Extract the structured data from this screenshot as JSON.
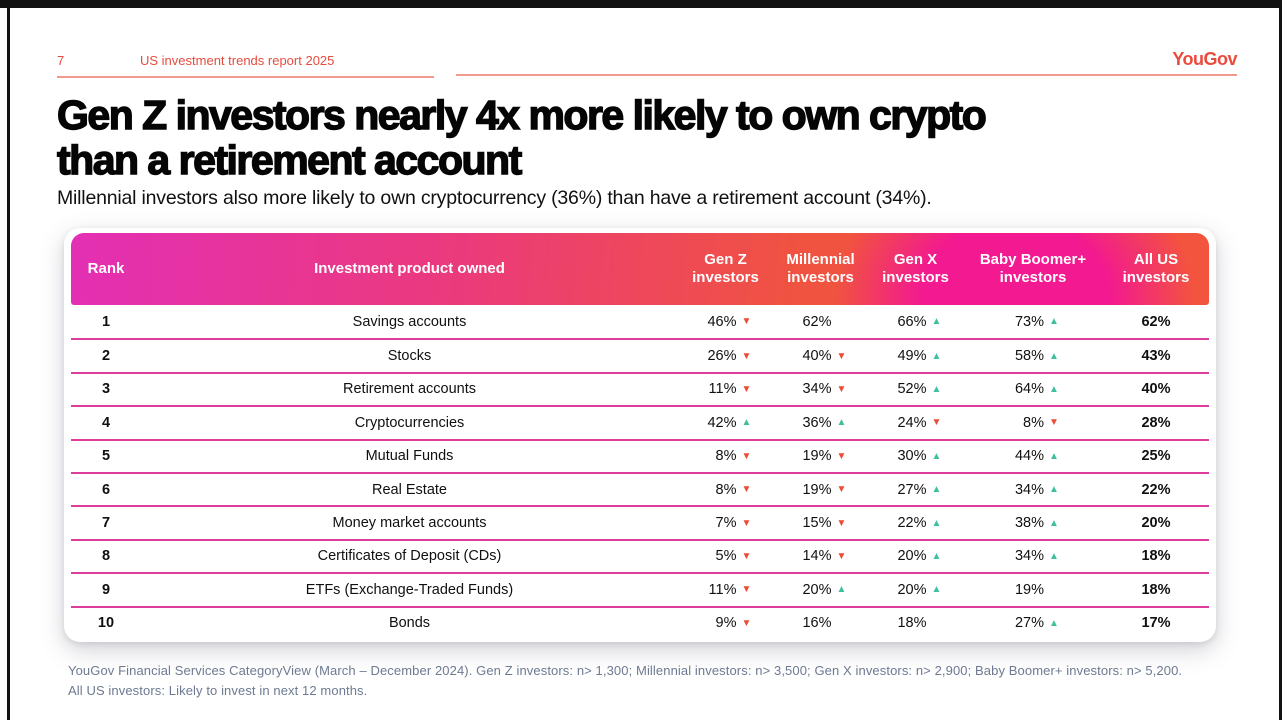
{
  "meta": {
    "page_number": "7",
    "report_title": "US investment trends report 2025",
    "logo_text": "YouGov"
  },
  "headline": {
    "line1": "Gen Z investors nearly 4x more likely to own crypto",
    "line2": "than a retirement account",
    "subtitle": "Millennial investors also more likely to own cryptocurrency (36%) than have a retirement account (34%)."
  },
  "table": {
    "header": {
      "rank": "Rank",
      "product": "Investment product owned",
      "investors": [
        "Gen Z investors",
        "Millennial investors",
        "Gen X investors",
        "Baby Boomer+ investors",
        "All US investors"
      ]
    },
    "rows": [
      {
        "rank": "1",
        "product": "Savings accounts",
        "values": [
          {
            "v": "46%",
            "arrow": "down"
          },
          {
            "v": "62%",
            "arrow": null
          },
          {
            "v": "66%",
            "arrow": "up"
          },
          {
            "v": "73%",
            "arrow": "up"
          }
        ],
        "all_us": "62%"
      },
      {
        "rank": "2",
        "product": "Stocks",
        "values": [
          {
            "v": "26%",
            "arrow": "down"
          },
          {
            "v": "40%",
            "arrow": "down"
          },
          {
            "v": "49%",
            "arrow": "up"
          },
          {
            "v": "58%",
            "arrow": "up"
          }
        ],
        "all_us": "43%"
      },
      {
        "rank": "3",
        "product": "Retirement accounts",
        "values": [
          {
            "v": "11%",
            "arrow": "down"
          },
          {
            "v": "34%",
            "arrow": "down"
          },
          {
            "v": "52%",
            "arrow": "up"
          },
          {
            "v": "64%",
            "arrow": "up"
          }
        ],
        "all_us": "40%"
      },
      {
        "rank": "4",
        "product": "Cryptocurrencies",
        "values": [
          {
            "v": "42%",
            "arrow": "up"
          },
          {
            "v": "36%",
            "arrow": "up"
          },
          {
            "v": "24%",
            "arrow": "down"
          },
          {
            "v": "8%",
            "arrow": "down"
          }
        ],
        "all_us": "28%"
      },
      {
        "rank": "5",
        "product": "Mutual Funds",
        "values": [
          {
            "v": "8%",
            "arrow": "down"
          },
          {
            "v": "19%",
            "arrow": "down"
          },
          {
            "v": "30%",
            "arrow": "up"
          },
          {
            "v": "44%",
            "arrow": "up"
          }
        ],
        "all_us": "25%"
      },
      {
        "rank": "6",
        "product": "Real Estate",
        "values": [
          {
            "v": "8%",
            "arrow": "down"
          },
          {
            "v": "19%",
            "arrow": "down"
          },
          {
            "v": "27%",
            "arrow": "up"
          },
          {
            "v": "34%",
            "arrow": "up"
          }
        ],
        "all_us": "22%"
      },
      {
        "rank": "7",
        "product": "Money market accounts",
        "values": [
          {
            "v": "7%",
            "arrow": "down"
          },
          {
            "v": "15%",
            "arrow": "down"
          },
          {
            "v": "22%",
            "arrow": "up"
          },
          {
            "v": "38%",
            "arrow": "up"
          }
        ],
        "all_us": "20%"
      },
      {
        "rank": "8",
        "product": "Certificates of Deposit (CDs)",
        "values": [
          {
            "v": "5%",
            "arrow": "down"
          },
          {
            "v": "14%",
            "arrow": "down"
          },
          {
            "v": "20%",
            "arrow": "up"
          },
          {
            "v": "34%",
            "arrow": "up"
          }
        ],
        "all_us": "18%"
      },
      {
        "rank": "9",
        "product": "ETFs (Exchange-Traded Funds)",
        "values": [
          {
            "v": "11%",
            "arrow": "down"
          },
          {
            "v": "20%",
            "arrow": "up"
          },
          {
            "v": "20%",
            "arrow": "up"
          },
          {
            "v": "19%",
            "arrow": null
          }
        ],
        "all_us": "18%"
      },
      {
        "rank": "10",
        "product": "Bonds",
        "values": [
          {
            "v": "9%",
            "arrow": "down"
          },
          {
            "v": "16%",
            "arrow": null
          },
          {
            "v": "18%",
            "arrow": null
          },
          {
            "v": "27%",
            "arrow": "up"
          }
        ],
        "all_us": "17%"
      }
    ],
    "arrow_glyphs": {
      "up": "▲",
      "down": "▼"
    }
  },
  "footnote": {
    "line1": "YouGov Financial Services CategoryView (March – December 2024). Gen Z investors: n> 1,300; Millennial investors: n> 3,500; Gen X investors: n> 2,900; Baby Boomer+ investors: n> 5,200.",
    "line2": "All US investors: Likely to invest in next 12 months."
  },
  "colors": {
    "accent_red": "#e64c3e",
    "underline_salmon": "#f09a8d",
    "header_gradient": [
      "#e32fb4",
      "#eb3a7c",
      "#f05340",
      "#f31990",
      "#f3543e"
    ],
    "row_separator": "#dd3c9c",
    "arrow_up_green": "#3fbf9e",
    "arrow_down_red": "#ee4b37",
    "footnote_gray": "#6d7a92",
    "frame_black": "#121212"
  }
}
